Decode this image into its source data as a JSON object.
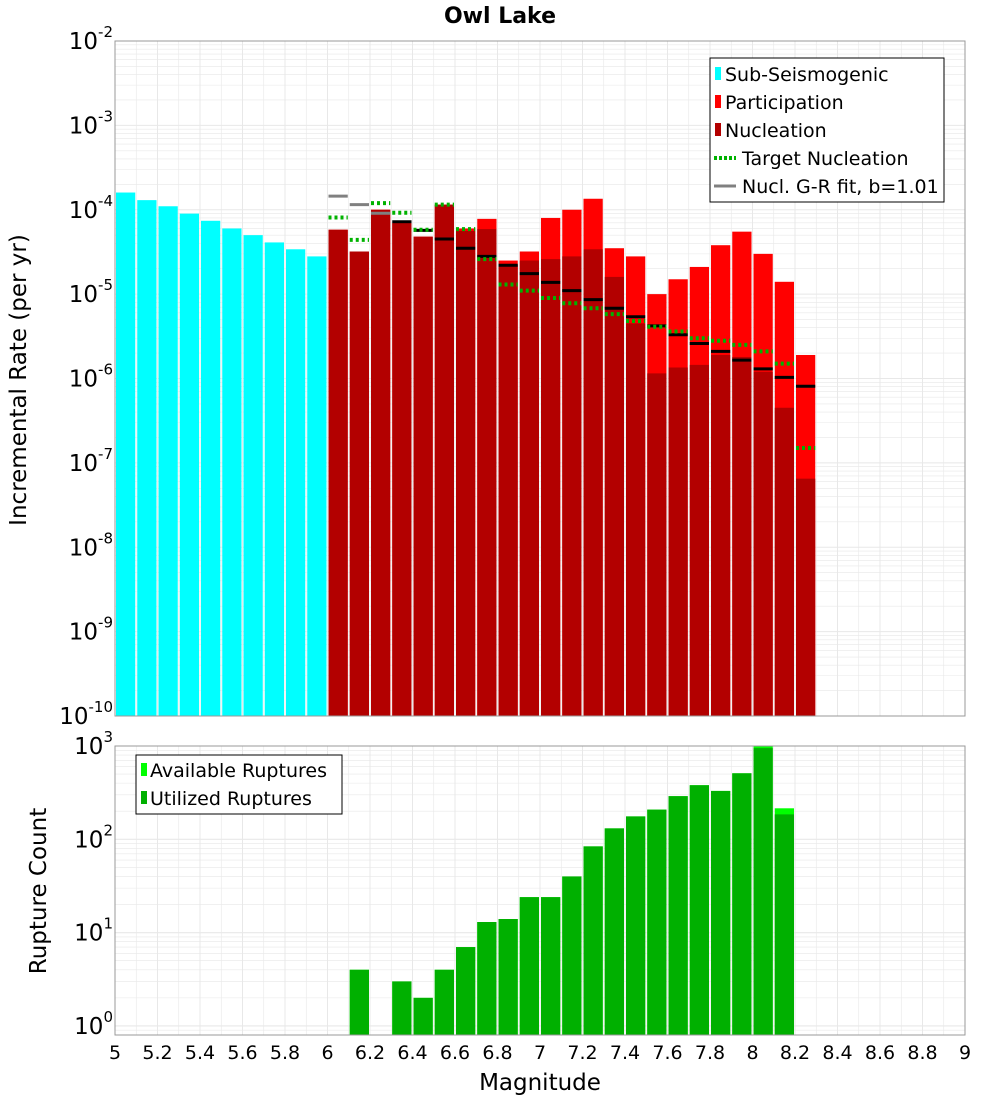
{
  "title": "Owl Lake",
  "colors": {
    "sub_seismogenic": "#00ffff",
    "participation": "#ff0000",
    "nucleation": "#b30000",
    "target_nucleation": "#00b200",
    "gr_fit": "#808080",
    "gr_fit_marker": "#000000",
    "available": "#00ff00",
    "utilized": "#00b000",
    "grid": "#e8e8e8",
    "frame": "#999999"
  },
  "chart_data": [
    {
      "type": "bar",
      "name": "incremental-rate",
      "title": "Owl Lake",
      "xlabel": "Magnitude",
      "ylabel": "Incremental Rate (per yr)",
      "xlim": [
        5,
        9
      ],
      "ylim": [
        1e-10,
        0.01
      ],
      "yscale": "log",
      "ytick_exponents": [
        -2,
        -3,
        -4,
        -5,
        -6,
        -7,
        -8,
        -9,
        -10
      ],
      "bin_width": 0.1,
      "legend": {
        "position": "top-right",
        "entries": [
          "Sub-Seismogenic",
          "Participation",
          "Nucleation",
          "Target Nucleation",
          "Nucl. G-R fit, b=1.01"
        ]
      },
      "series": [
        {
          "name": "Sub-Seismogenic",
          "type": "bar",
          "x": [
            5.05,
            5.15,
            5.25,
            5.35,
            5.45,
            5.55,
            5.65,
            5.75,
            5.85,
            5.95
          ],
          "values": [
            0.00016,
            0.00013,
            0.00011,
            9e-05,
            7.4e-05,
            6e-05,
            5e-05,
            4.1e-05,
            3.4e-05,
            2.8e-05
          ]
        },
        {
          "name": "Participation",
          "type": "bar",
          "x": [
            6.05,
            6.15,
            6.25,
            6.35,
            6.45,
            6.55,
            6.65,
            6.75,
            6.85,
            6.95,
            7.05,
            7.15,
            7.25,
            7.35,
            7.45,
            7.55,
            7.65,
            7.75,
            7.85,
            7.95,
            8.05,
            8.15,
            8.25
          ],
          "values": [
            5.8e-05,
            3.2e-05,
            0.0001,
            7e-05,
            4.8e-05,
            0.000115,
            6e-05,
            7.8e-05,
            2.5e-05,
            3.2e-05,
            8e-05,
            0.0001,
            0.000135,
            3.5e-05,
            2.8e-05,
            1e-05,
            1.5e-05,
            2.1e-05,
            3.8e-05,
            5.5e-05,
            3e-05,
            1.4e-05,
            1.9e-06
          ]
        },
        {
          "name": "Nucleation",
          "type": "bar",
          "x": [
            6.05,
            6.15,
            6.25,
            6.35,
            6.45,
            6.55,
            6.65,
            6.75,
            6.85,
            6.95,
            7.05,
            7.15,
            7.25,
            7.35,
            7.45,
            7.55,
            7.65,
            7.75,
            7.85,
            7.95,
            8.05,
            8.15,
            8.25
          ],
          "values": [
            5.8e-05,
            3.2e-05,
            0.0001,
            6.9e-05,
            4.8e-05,
            0.000115,
            5.6e-05,
            5.9e-05,
            2.2e-05,
            2.5e-05,
            2.6e-05,
            2.8e-05,
            3.4e-05,
            1.6e-05,
            4.5e-06,
            1.15e-06,
            1.35e-06,
            1.45e-06,
            1.9e-06,
            1.8e-06,
            1.2e-06,
            4.5e-07,
            6.5e-08
          ]
        },
        {
          "name": "Target Nucleation",
          "type": "step-dotted",
          "x": [
            6.05,
            6.15,
            6.25,
            6.35,
            6.45,
            6.55,
            6.65,
            6.75,
            6.85,
            6.95,
            7.05,
            7.15,
            7.25,
            7.35,
            7.45,
            7.55,
            7.65,
            7.75,
            7.85,
            7.95,
            8.05,
            8.15,
            8.25
          ],
          "values": [
            8.1e-05,
            4.4e-05,
            0.00012,
            9.2e-05,
            5.8e-05,
            0.000115,
            5.9e-05,
            2.6e-05,
            1.3e-05,
            1.1e-05,
            9e-06,
            7.8e-06,
            6.8e-06,
            5.8e-06,
            4.8e-06,
            4.1e-06,
            3.6e-06,
            3e-06,
            2.8e-06,
            2.5e-06,
            2.1e-06,
            1.5e-06,
            1.5e-07
          ]
        },
        {
          "name": "Nucl. G-R fit, b=1.01",
          "type": "step-line",
          "x": [
            6.05,
            6.15,
            6.25,
            6.35,
            6.45,
            6.55,
            6.65,
            6.75,
            6.85,
            6.95,
            7.05,
            7.15,
            7.25,
            7.35,
            7.45,
            7.55,
            7.65,
            7.75,
            7.85,
            7.95,
            8.05,
            8.15,
            8.25
          ],
          "values": [
            0.000145,
            0.000115,
            9.1e-05,
            7.2e-05,
            5.7e-05,
            4.5e-05,
            3.5e-05,
            2.8e-05,
            2.2e-05,
            1.75e-05,
            1.38e-05,
            1.1e-05,
            8.6e-06,
            6.8e-06,
            5.4e-06,
            4.2e-06,
            3.3e-06,
            2.6e-06,
            2.1e-06,
            1.65e-06,
            1.3e-06,
            1.03e-06,
            8.1e-07
          ]
        }
      ]
    },
    {
      "type": "bar",
      "name": "rupture-count",
      "xlabel": "Magnitude",
      "ylabel": "Rupture Count",
      "xlim": [
        5,
        9
      ],
      "ylim": [
        0.8,
        1000
      ],
      "yscale": "log",
      "ytick_exponents": [
        3,
        2,
        1,
        0
      ],
      "xticks": [
        "5",
        "5.2",
        "5.4",
        "5.6",
        "5.8",
        "6",
        "6.2",
        "6.4",
        "6.6",
        "6.8",
        "7",
        "7.2",
        "7.4",
        "7.6",
        "7.8",
        "8",
        "8.2",
        "8.4",
        "8.6",
        "8.8",
        "9"
      ],
      "bin_width": 0.1,
      "legend": {
        "position": "top-left",
        "entries": [
          "Available Ruptures",
          "Utilized Ruptures"
        ]
      },
      "series": [
        {
          "name": "Available Ruptures",
          "x": [
            6.15,
            6.35,
            6.45,
            6.55,
            6.65,
            6.75,
            6.85,
            6.95,
            7.05,
            7.15,
            7.25,
            7.35,
            7.45,
            7.55,
            7.65,
            7.75,
            7.85,
            7.95,
            8.05,
            8.15
          ],
          "values": [
            4,
            3,
            2,
            4,
            7,
            13,
            14,
            24,
            24,
            40,
            84,
            131,
            176,
            208,
            290,
            380,
            330,
            510,
            1000,
            215
          ]
        },
        {
          "name": "Utilized Ruptures",
          "x": [
            6.15,
            6.35,
            6.45,
            6.55,
            6.65,
            6.75,
            6.85,
            6.95,
            7.05,
            7.15,
            7.25,
            7.35,
            7.45,
            7.55,
            7.65,
            7.75,
            7.85,
            7.95,
            8.05,
            8.15
          ],
          "values": [
            4,
            3,
            2,
            4,
            7,
            13,
            14,
            24,
            24,
            40,
            84,
            131,
            176,
            208,
            290,
            380,
            330,
            510,
            950,
            185
          ]
        }
      ]
    }
  ]
}
